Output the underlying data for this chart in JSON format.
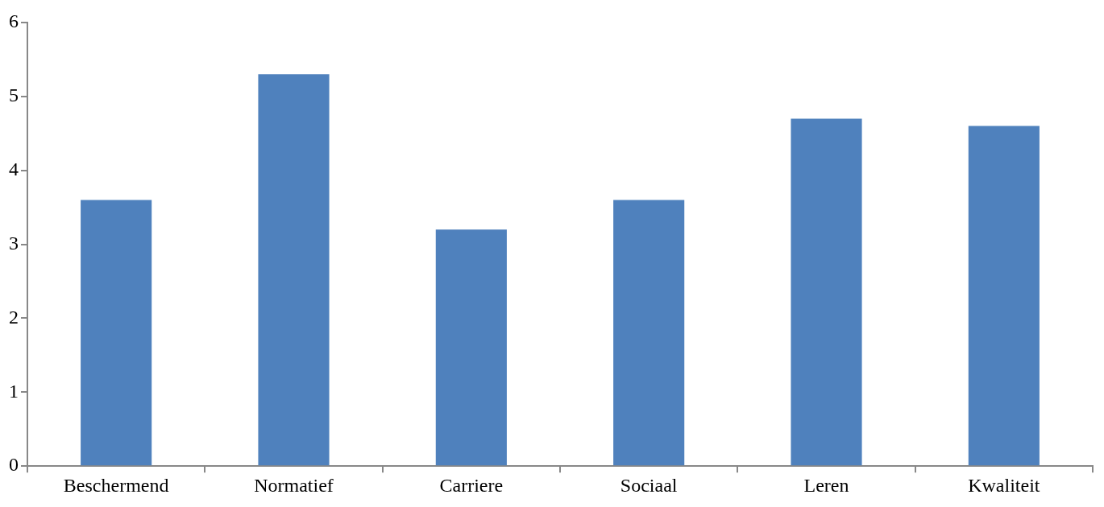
{
  "chart_data": {
    "type": "bar",
    "categories": [
      "Beschermend",
      "Normatief",
      "Carriere",
      "Sociaal",
      "Leren",
      "Kwaliteit"
    ],
    "values": [
      3.6,
      5.3,
      3.2,
      3.6,
      4.7,
      4.6
    ],
    "color": "#4f81bd",
    "ylim": [
      0,
      6
    ],
    "yticks": [
      0,
      1,
      2,
      3,
      4,
      5,
      6
    ],
    "grid": false,
    "legend": false
  }
}
